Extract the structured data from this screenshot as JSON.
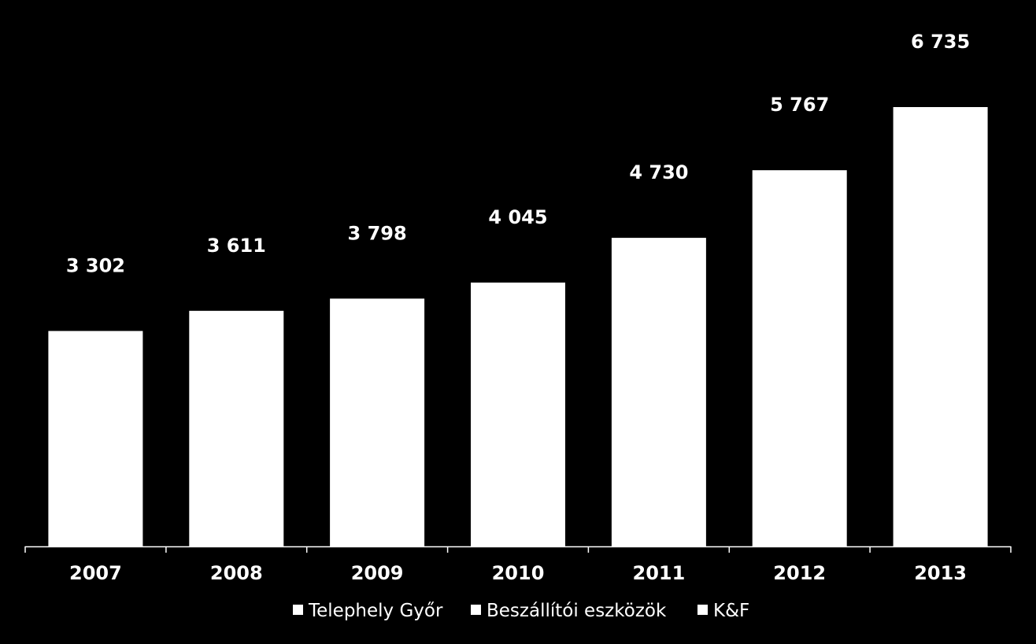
{
  "chart_data": {
    "type": "bar",
    "categories": [
      "2007",
      "2008",
      "2009",
      "2010",
      "2011",
      "2012",
      "2013"
    ],
    "values": [
      3302,
      3611,
      3798,
      4045,
      4730,
      5767,
      6735
    ],
    "value_labels": [
      "3 302",
      "3 611",
      "3 798",
      "4 045",
      "4 730",
      "5 767",
      "6 735"
    ],
    "title": "",
    "xlabel": "",
    "ylabel": "",
    "ylim": [
      0,
      6735
    ],
    "grid": false,
    "legend": {
      "placement": "bottom",
      "entries": [
        "Telephely Győr",
        "Beszállítói eszközök",
        "K&F"
      ]
    }
  },
  "colors": {
    "background": "#000000",
    "bar": "#ffffff",
    "axis": "#ffffff",
    "text": "#ffffff"
  }
}
